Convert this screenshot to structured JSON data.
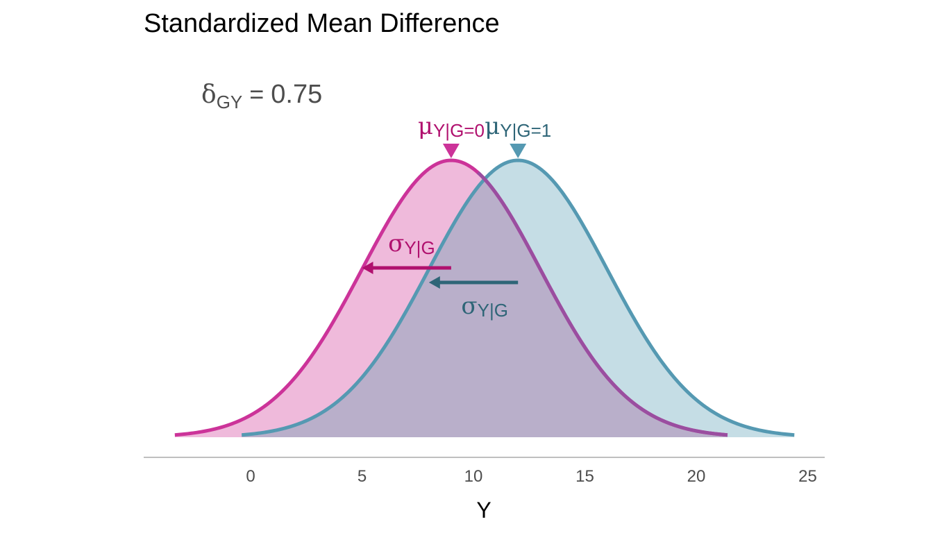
{
  "chart_data": {
    "type": "area",
    "title": "Standardized Mean Difference",
    "xlabel": "Y",
    "ylabel": "",
    "xlim": [
      -4.5,
      26
    ],
    "xticks": [
      0,
      5,
      10,
      15,
      20,
      25
    ],
    "grid": false,
    "legend": "none",
    "series": [
      {
        "group": "G=0",
        "mean": 9,
        "sd": 4,
        "x_range": [
          -3.4,
          21.4
        ],
        "color": "#cc3399",
        "fill": "#efbadb"
      },
      {
        "group": "G=1",
        "mean": 12,
        "sd": 4,
        "x_range": [
          -0.4,
          24.4
        ],
        "color": "#5599b2",
        "fill": "#c5dde5"
      }
    ],
    "overlap_fill": "#b9afca",
    "annotations": {
      "effect": {
        "symbol": "δ",
        "sub": "GY",
        "eq": " = ",
        "value": "0.75"
      },
      "mu0": {
        "symbol": "μ",
        "sub": "Y|G=0"
      },
      "mu1": {
        "symbol": "μ",
        "sub": "Y|G=1"
      },
      "sigma0": {
        "symbol": "σ",
        "sub": "Y|G"
      },
      "sigma1": {
        "symbol": "σ",
        "sub": "Y|G"
      }
    },
    "colors": {
      "group0_dark": "#b0106e",
      "group1_dark": "#2e6577",
      "axis": "#aaaaaa"
    }
  }
}
